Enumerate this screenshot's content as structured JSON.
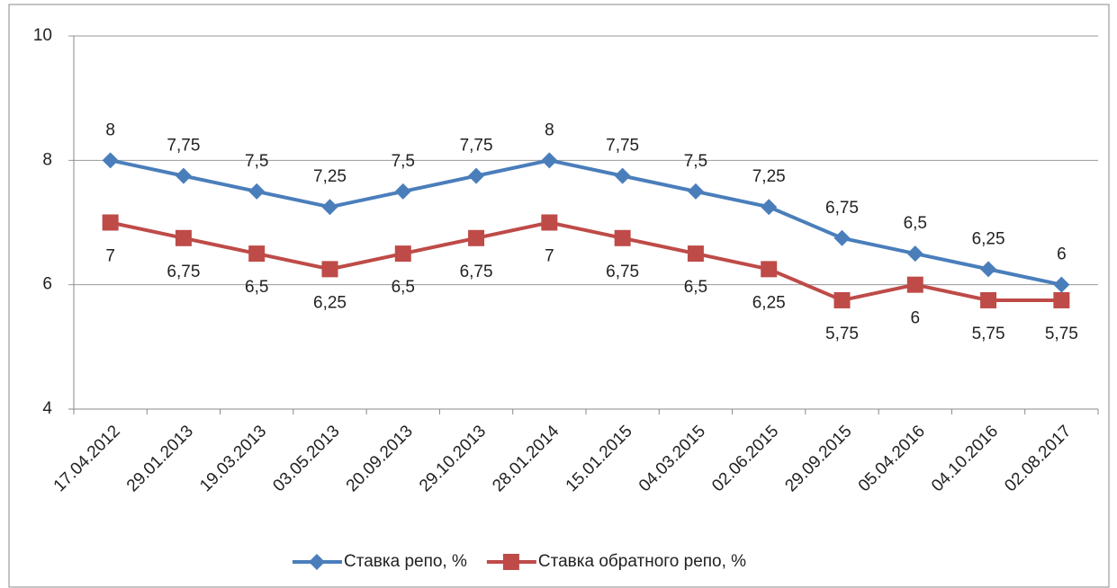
{
  "chart_data": {
    "type": "line",
    "categories": [
      "17.04.2012",
      "29.01.2013",
      "19.03.2013",
      "03.05.2013",
      "20.09.2013",
      "29.10.2013",
      "28.01.2014",
      "15.01.2015",
      "04.03.2015",
      "02.06.2015",
      "29.09.2015",
      "05.04.2016",
      "04.10.2016",
      "02.08.2017"
    ],
    "series": [
      {
        "name": "Ставка репо, %",
        "color": "#4a7ebb",
        "marker": "diamond",
        "values": [
          8,
          7.75,
          7.5,
          7.25,
          7.5,
          7.75,
          8,
          7.75,
          7.5,
          7.25,
          6.75,
          6.5,
          6.25,
          6
        ],
        "value_labels": [
          "8",
          "7,75",
          "7,5",
          "7,25",
          "7,5",
          "7,75",
          "8",
          "7,75",
          "7,5",
          "7,25",
          "6,75",
          "6,5",
          "6,25",
          "6"
        ]
      },
      {
        "name": "Ставка обратного репо, %",
        "color": "#be4b48",
        "marker": "square",
        "values": [
          7,
          6.75,
          6.5,
          6.25,
          6.5,
          6.75,
          7,
          6.75,
          6.5,
          6.25,
          5.75,
          6,
          5.75,
          5.75
        ],
        "value_labels": [
          "7",
          "6,75",
          "6,5",
          "6,25",
          "6,5",
          "6,75",
          "7",
          "6,75",
          "6,5",
          "6,25",
          "5,75",
          "6",
          "5,75",
          "5,75"
        ]
      }
    ],
    "ylim": [
      4,
      10
    ],
    "yticks": [
      4,
      6,
      8,
      10
    ],
    "grid": true,
    "legend": "bottom"
  }
}
